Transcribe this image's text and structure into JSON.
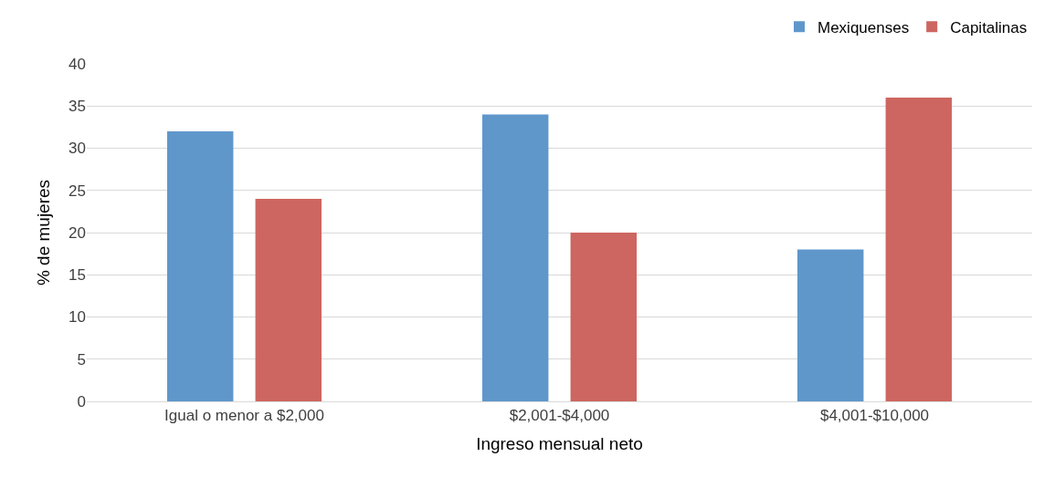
{
  "chart_data": {
    "type": "bar",
    "xlabel": "Ingreso mensual neto",
    "ylabel": "% de mujeres",
    "categories": [
      "Igual o menor a $2,000",
      "$2,001-$4,000",
      "$4,001-$10,000"
    ],
    "series": [
      {
        "name": "Mexiquenses",
        "color": "#5f97cb",
        "values": [
          32,
          34,
          18
        ]
      },
      {
        "name": "Capitalinas",
        "color": "#cd6660",
        "values": [
          24,
          20,
          36
        ]
      }
    ],
    "ylim": [
      0,
      40
    ],
    "yticks": [
      0,
      5,
      10,
      15,
      20,
      25,
      30,
      35,
      40
    ],
    "grid": "y",
    "legend": "top right"
  }
}
